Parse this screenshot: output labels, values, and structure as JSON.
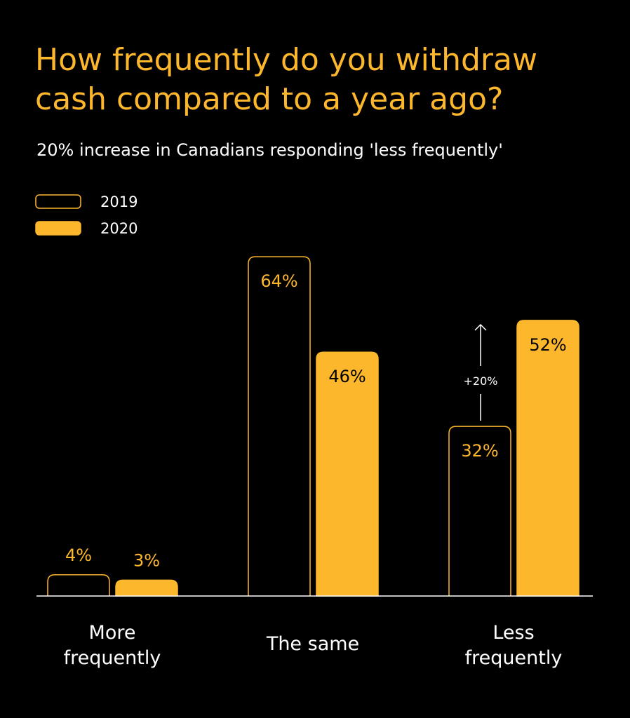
{
  "chart_data": {
    "type": "bar",
    "title": "How frequently do you withdraw cash compared to a year ago?",
    "subtitle": "20% increase in Canadians responding 'less frequently'",
    "categories": [
      "More frequently",
      "The same",
      "Less frequently"
    ],
    "category_lines": [
      [
        "More",
        "frequently"
      ],
      [
        "The same"
      ],
      [
        "Less",
        "frequently"
      ]
    ],
    "series": [
      {
        "name": "2019",
        "values": [
          4,
          64,
          32
        ],
        "labels": [
          "4%",
          "64%",
          "32%"
        ],
        "style": "outline"
      },
      {
        "name": "2020",
        "values": [
          3,
          46,
          52
        ],
        "labels": [
          "3%",
          "46%",
          "52%"
        ],
        "style": "filled"
      }
    ],
    "annotation": "+20%",
    "ylim": [
      0,
      64
    ],
    "grid": false,
    "legend": "top-left",
    "colors": {
      "accent": "#FDB72C",
      "background": "#000000",
      "text": "#FFFFFF"
    }
  }
}
